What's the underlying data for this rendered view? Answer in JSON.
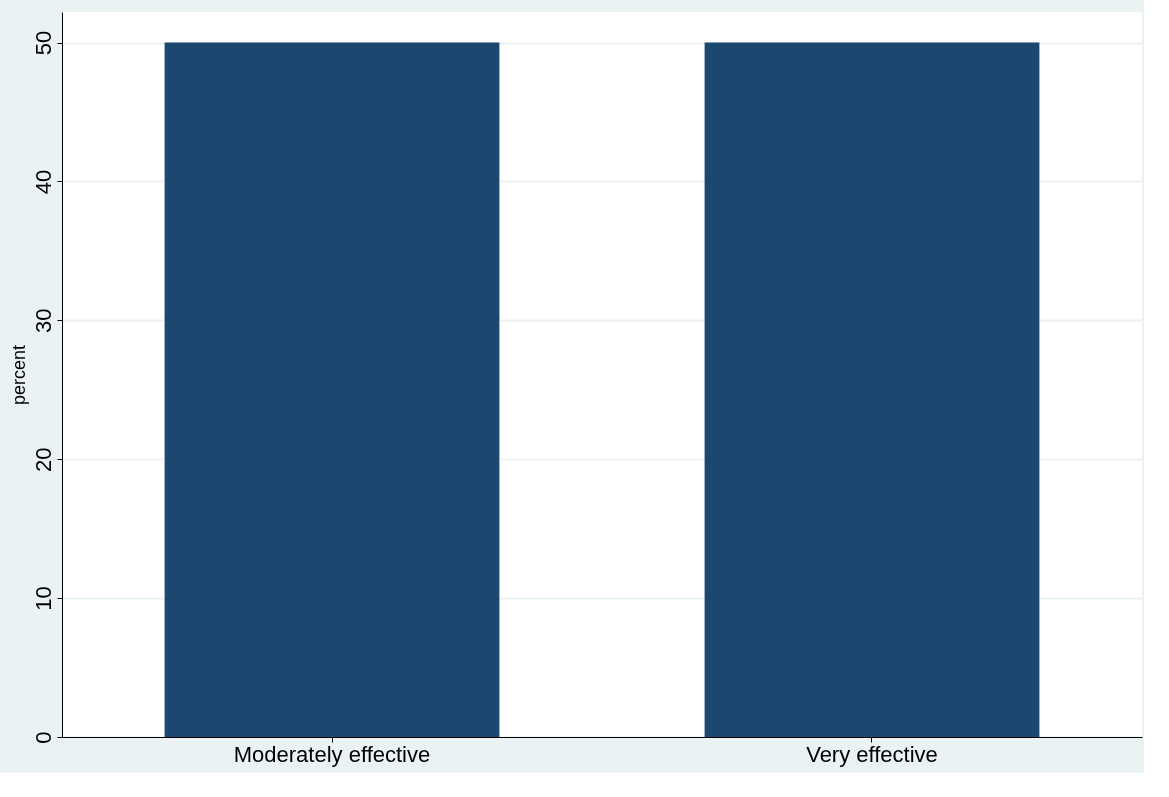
{
  "chart_data": {
    "type": "bar",
    "ylabel": "percent",
    "categories": [
      "Moderately effective",
      "Very effective"
    ],
    "values": [
      50,
      50
    ],
    "color": "#1c476f",
    "ylim": [
      0,
      52.2
    ],
    "yticks": [
      0,
      10,
      20,
      30,
      40,
      50
    ],
    "grid": "y"
  }
}
